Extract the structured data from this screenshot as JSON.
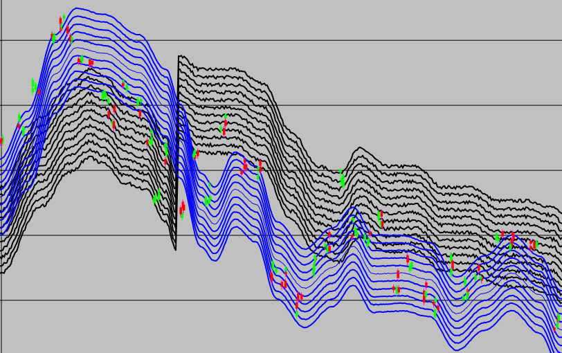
{
  "chart_data": {
    "type": "line",
    "title": "",
    "xlabel": "",
    "ylabel": "",
    "xlim": [
      0,
      406
    ],
    "ylim": [
      0.19,
      5.62
    ],
    "grid_y": [
      1,
      2,
      3,
      4,
      5
    ],
    "grid": true,
    "background": "#c0c0c0",
    "colors": {
      "fast_ribbon": "#0000ff",
      "slow_ribbon": "#000000",
      "up_candle": "#00ff00",
      "down_candle": "#ff0000",
      "wick": "#ff00ff",
      "grid": "#000000"
    },
    "fast_ribbon": {
      "count": 11,
      "spacing": 0.117,
      "top_line": [
        [
          0,
          3.17
        ],
        [
          20,
          3.91
        ],
        [
          40,
          5.09
        ],
        [
          55,
          5.49
        ],
        [
          75,
          5.4
        ],
        [
          100,
          5.09
        ],
        [
          120,
          4.55
        ],
        [
          130,
          4.02
        ],
        [
          145,
          2.96
        ],
        [
          155,
          2.74
        ],
        [
          170,
          3.28
        ],
        [
          185,
          3.06
        ],
        [
          200,
          2.21
        ],
        [
          220,
          1.79
        ],
        [
          240,
          2.11
        ],
        [
          255,
          2.43
        ],
        [
          270,
          2.0
        ],
        [
          290,
          2.0
        ],
        [
          310,
          1.89
        ],
        [
          330,
          1.36
        ],
        [
          350,
          1.68
        ],
        [
          370,
          2.0
        ],
        [
          390,
          1.68
        ],
        [
          405,
          1.15
        ]
      ]
    },
    "slow_ribbon": {
      "count": 12,
      "spacing": 0.12,
      "top_line": [
        [
          0,
          2.74
        ],
        [
          30,
          3.81
        ],
        [
          50,
          4.34
        ],
        [
          65,
          4.55
        ],
        [
          75,
          4.45
        ],
        [
          90,
          4.13
        ],
        [
          105,
          4.02
        ],
        [
          120,
          3.49
        ],
        [
          127,
          3.06
        ],
        [
          129,
          4.77
        ],
        [
          145,
          4.55
        ],
        [
          170,
          4.55
        ],
        [
          190,
          4.34
        ],
        [
          210,
          3.6
        ],
        [
          230,
          3.06
        ],
        [
          245,
          2.96
        ],
        [
          260,
          3.33
        ],
        [
          280,
          3.06
        ],
        [
          300,
          3.06
        ],
        [
          320,
          2.74
        ],
        [
          340,
          2.74
        ],
        [
          360,
          2.53
        ],
        [
          380,
          2.53
        ],
        [
          400,
          2.43
        ],
        [
          406,
          2.32
        ]
      ]
    },
    "price": [
      [
        2,
        3.49
      ],
      [
        15,
        3.7
      ],
      [
        25,
        4.34
      ],
      [
        37,
        4.98
      ],
      [
        45,
        5.3
      ],
      [
        50,
        5.09
      ],
      [
        57,
        4.66
      ],
      [
        65,
        4.55
      ],
      [
        75,
        4.13
      ],
      [
        80,
        3.81
      ],
      [
        90,
        4.23
      ],
      [
        100,
        4.02
      ],
      [
        107,
        3.49
      ],
      [
        112,
        2.64
      ],
      [
        120,
        3.28
      ],
      [
        130,
        2.43
      ],
      [
        140,
        3.17
      ],
      [
        150,
        2.64
      ],
      [
        160,
        3.7
      ],
      [
        175,
        3.06
      ],
      [
        185,
        2.96
      ],
      [
        197,
        1.47
      ],
      [
        205,
        1.36
      ],
      [
        215,
        0.94
      ],
      [
        225,
        1.57
      ],
      [
        235,
        1.89
      ],
      [
        245,
        2.85
      ],
      [
        255,
        2.11
      ],
      [
        265,
        2.0
      ],
      [
        275,
        2.21
      ],
      [
        285,
        1.26
      ],
      [
        295,
        1.57
      ],
      [
        305,
        1.15
      ],
      [
        315,
        0.94
      ],
      [
        325,
        1.57
      ],
      [
        335,
        1.15
      ],
      [
        345,
        1.36
      ],
      [
        360,
        2.0
      ],
      [
        370,
        1.89
      ],
      [
        385,
        1.79
      ],
      [
        402,
        0.64
      ]
    ]
  }
}
